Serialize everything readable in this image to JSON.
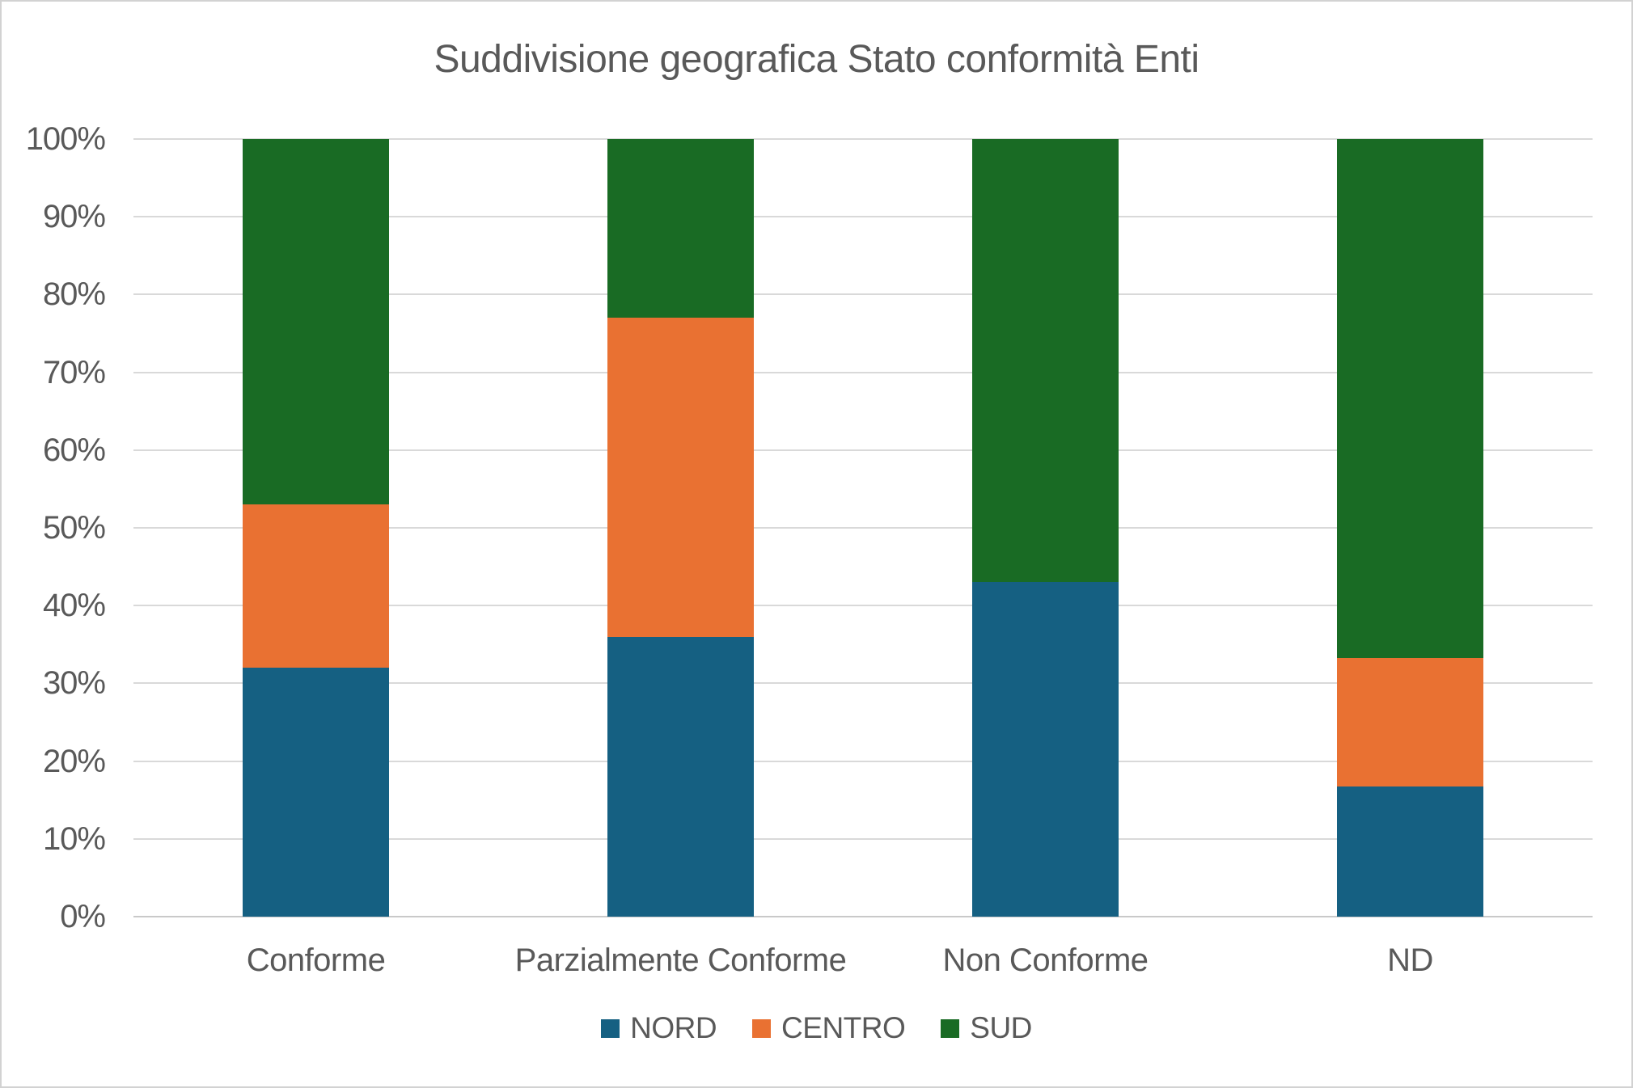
{
  "chart_data": {
    "type": "bar",
    "variant": "stacked-100-percent",
    "title": "Suddivisione geografica Stato conformità Enti",
    "categories": [
      "Conforme",
      "Parzialmente Conforme",
      "Non Conforme",
      "ND"
    ],
    "series": [
      {
        "name": "NORD",
        "color": "#156082",
        "values": [
          32,
          36,
          43,
          16.7
        ]
      },
      {
        "name": "CENTRO",
        "color": "#E97132",
        "values": [
          21,
          41,
          0,
          16.6
        ]
      },
      {
        "name": "SUD",
        "color": "#196B24",
        "values": [
          47,
          23,
          57,
          66.7
        ]
      }
    ],
    "y_axis": {
      "ticks": [
        "0%",
        "10%",
        "20%",
        "30%",
        "40%",
        "50%",
        "60%",
        "70%",
        "80%",
        "90%",
        "100%"
      ],
      "min": 0,
      "max": 100,
      "step": 10
    },
    "grid": true,
    "legend": {
      "position": "bottom",
      "entries": [
        "NORD",
        "CENTRO",
        "SUD"
      ]
    },
    "styles": {
      "text_color": "#595959",
      "gridline_color": "#D9D9D9",
      "axis_line_color": "#C9C9C9",
      "background": "#FFFFFF",
      "frame_border_color": "#D2D2D2"
    }
  }
}
